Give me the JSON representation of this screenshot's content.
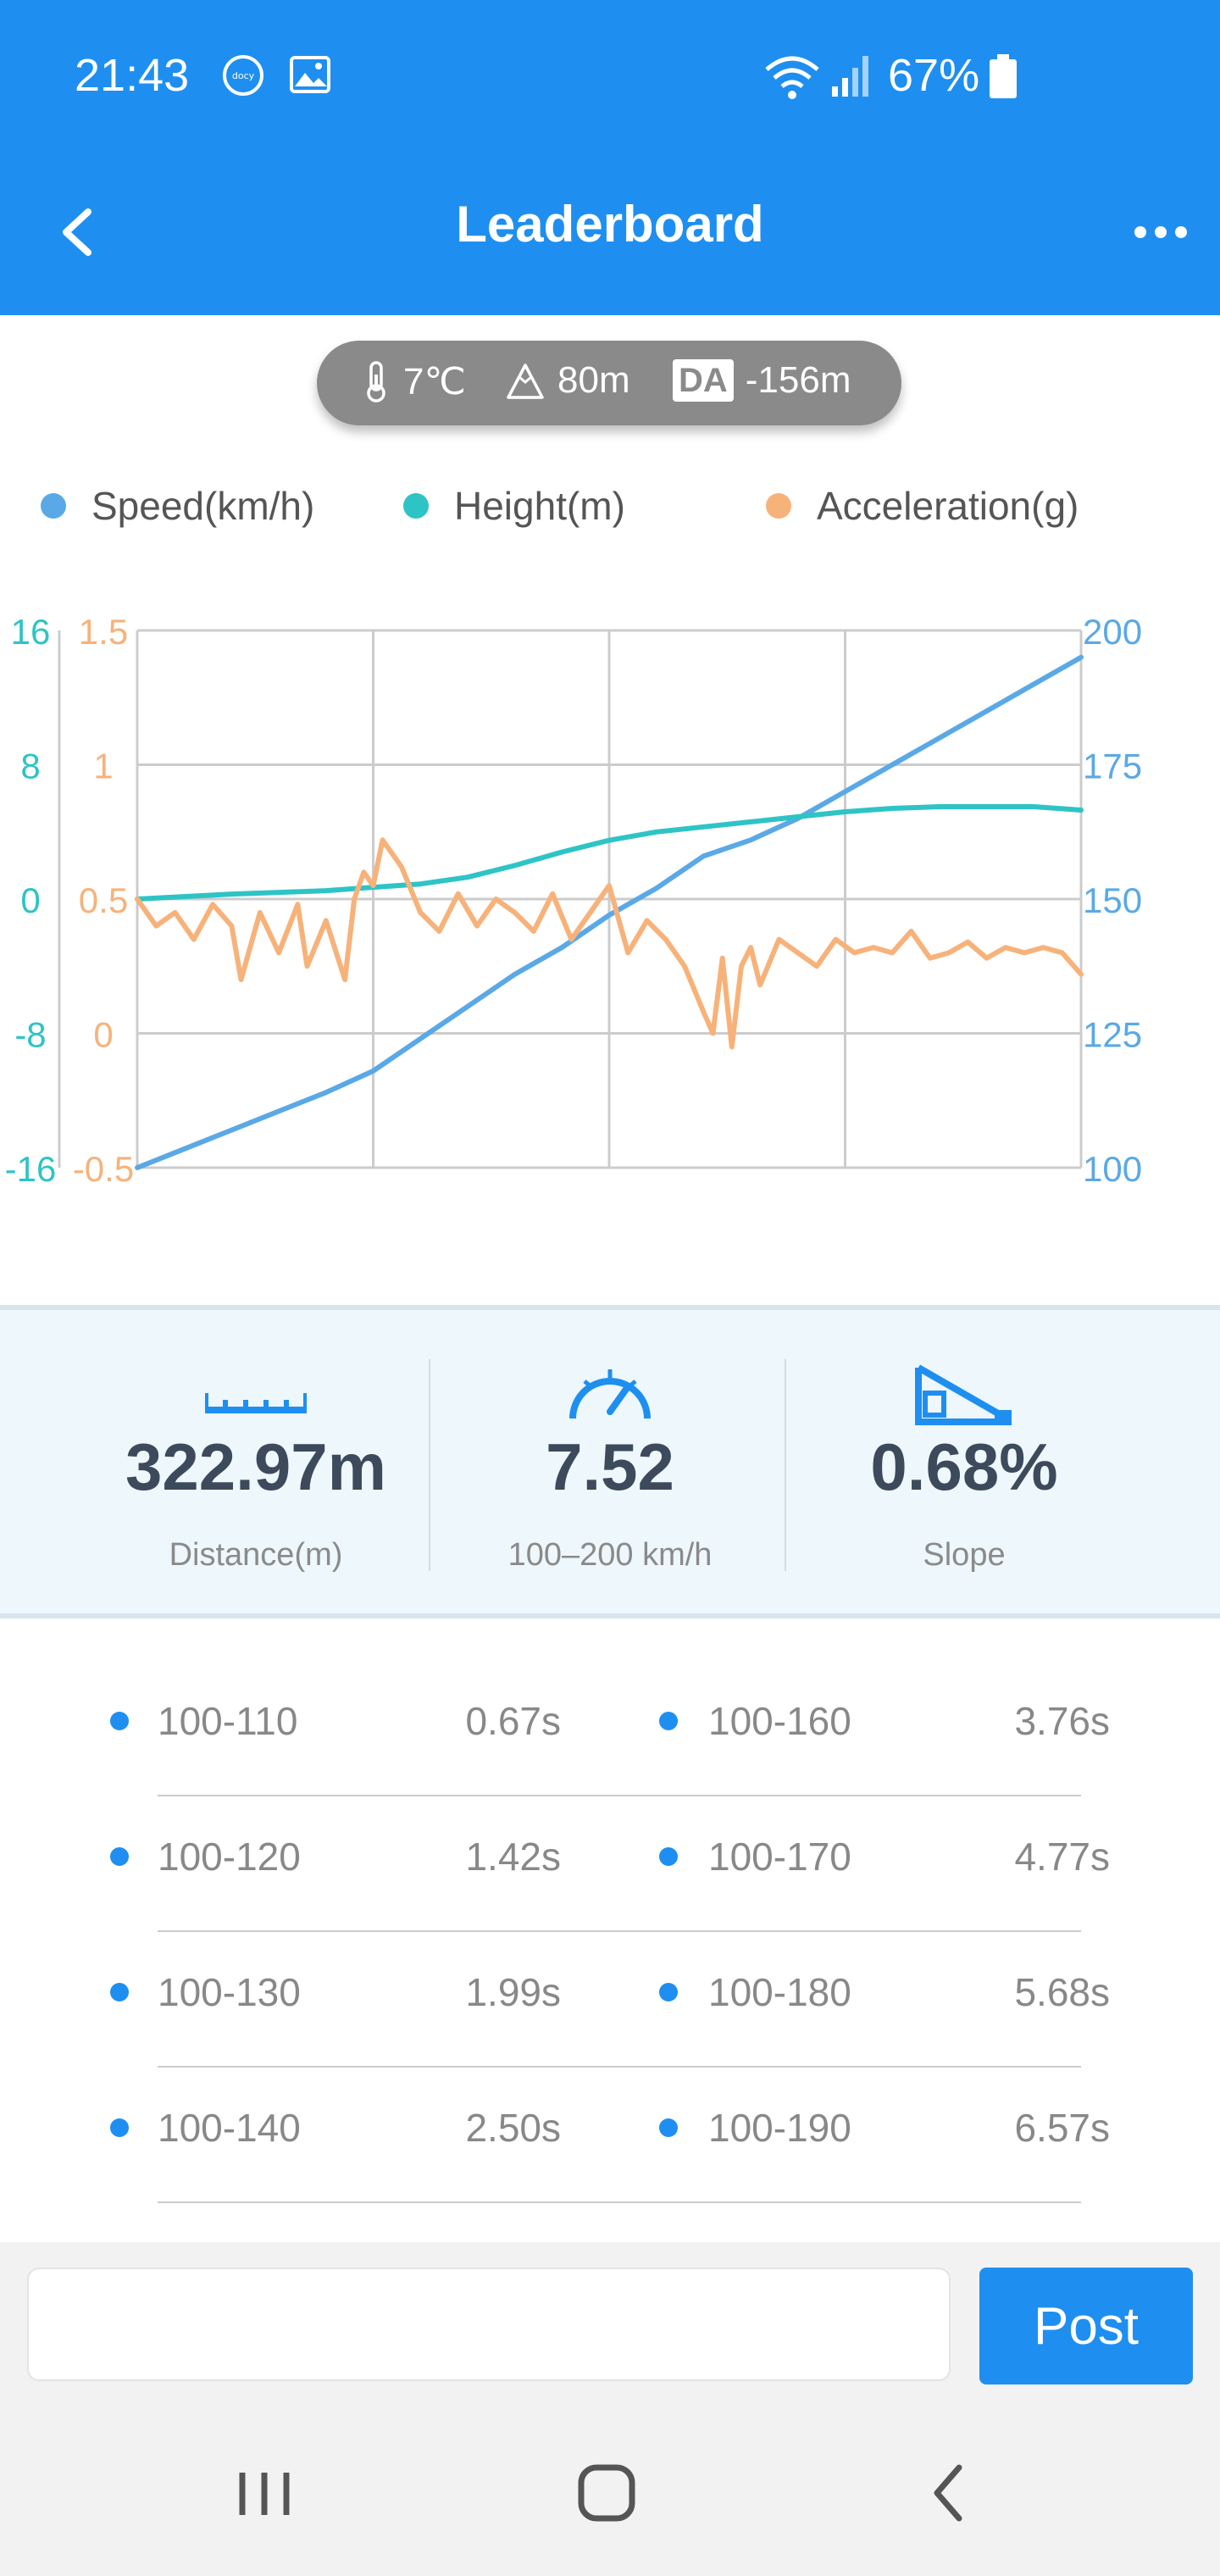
{
  "status_bar": {
    "time": "21:43",
    "notification_icons": [
      "dcloud-icon",
      "gallery-icon"
    ],
    "system_icons": [
      "wifi-icon",
      "signal-icon",
      "battery-icon"
    ],
    "battery_percent": "67%"
  },
  "app_bar": {
    "title": "Leaderboard",
    "back_icon": "chevron-left-icon",
    "menu_icon": "more-horizontal-icon"
  },
  "conditions": {
    "temperature": "7℃",
    "altitude": "80m",
    "da_badge": "DA",
    "density_altitude": "-156m"
  },
  "legend": [
    {
      "label": "Speed(km/h)",
      "color": "#5aa9e6"
    },
    {
      "label": "Height(m)",
      "color": "#2ec4c6"
    },
    {
      "label": "Acceleration(g)",
      "color": "#f7b27a"
    }
  ],
  "chart_data": {
    "type": "line",
    "grid": true,
    "x_divisions": 4,
    "axes": {
      "height_axis": {
        "ticks": [
          "16",
          "8",
          "0",
          "-8",
          "-16"
        ],
        "range": [
          -16,
          16
        ],
        "color": "#2ec4c6"
      },
      "accel_axis": {
        "ticks": [
          "1.5",
          "1",
          "0.5",
          "0",
          "-0.5"
        ],
        "range": [
          -0.5,
          1.5
        ],
        "color": "#f7b27a"
      },
      "speed_axis": {
        "ticks": [
          "200",
          "175",
          "150",
          "125",
          "100"
        ],
        "range": [
          100,
          200
        ],
        "color": "#5aa9e6"
      }
    },
    "series": [
      {
        "name": "Speed(km/h)",
        "axis": "speed_axis",
        "color": "#5aa9e6",
        "x": [
          0,
          0.05,
          0.1,
          0.15,
          0.2,
          0.25,
          0.3,
          0.35,
          0.4,
          0.45,
          0.5,
          0.55,
          0.6,
          0.65,
          0.7,
          0.75,
          0.8,
          0.85,
          0.9,
          0.95,
          1.0
        ],
        "values": [
          100,
          103.5,
          107,
          110.5,
          114,
          118,
          124,
          130,
          136,
          141,
          147,
          152,
          158,
          161,
          165,
          170,
          175,
          180,
          185,
          190,
          195
        ]
      },
      {
        "name": "Height(m)",
        "axis": "height_axis",
        "color": "#2ec4c6",
        "x": [
          0,
          0.1,
          0.2,
          0.25,
          0.3,
          0.35,
          0.4,
          0.45,
          0.5,
          0.55,
          0.6,
          0.65,
          0.7,
          0.75,
          0.8,
          0.85,
          0.9,
          0.95,
          1.0
        ],
        "values": [
          0,
          0.3,
          0.5,
          0.7,
          0.9,
          1.3,
          2.0,
          2.8,
          3.5,
          4.0,
          4.3,
          4.6,
          4.9,
          5.2,
          5.4,
          5.5,
          5.5,
          5.5,
          5.3
        ]
      },
      {
        "name": "Acceleration(g)",
        "axis": "accel_axis",
        "color": "#f7b27a",
        "x": [
          0,
          0.02,
          0.04,
          0.06,
          0.08,
          0.1,
          0.11,
          0.13,
          0.15,
          0.17,
          0.18,
          0.2,
          0.22,
          0.23,
          0.24,
          0.25,
          0.26,
          0.28,
          0.3,
          0.32,
          0.34,
          0.36,
          0.38,
          0.4,
          0.42,
          0.44,
          0.46,
          0.48,
          0.5,
          0.52,
          0.54,
          0.56,
          0.58,
          0.6,
          0.61,
          0.62,
          0.63,
          0.64,
          0.65,
          0.66,
          0.68,
          0.7,
          0.72,
          0.74,
          0.76,
          0.78,
          0.8,
          0.82,
          0.84,
          0.86,
          0.88,
          0.9,
          0.92,
          0.94,
          0.96,
          0.98,
          1.0
        ],
        "values": [
          0.5,
          0.4,
          0.45,
          0.35,
          0.48,
          0.4,
          0.2,
          0.45,
          0.3,
          0.48,
          0.25,
          0.42,
          0.2,
          0.5,
          0.6,
          0.55,
          0.72,
          0.62,
          0.45,
          0.38,
          0.52,
          0.4,
          0.5,
          0.45,
          0.38,
          0.52,
          0.35,
          0.45,
          0.55,
          0.3,
          0.42,
          0.35,
          0.25,
          0.08,
          0.0,
          0.28,
          -0.05,
          0.25,
          0.32,
          0.18,
          0.35,
          0.3,
          0.25,
          0.35,
          0.3,
          0.32,
          0.3,
          0.38,
          0.28,
          0.3,
          0.34,
          0.28,
          0.32,
          0.3,
          0.32,
          0.3,
          0.22
        ]
      }
    ]
  },
  "stats": [
    {
      "icon": "ruler-icon",
      "value": "322.97m",
      "label": "Distance(m)"
    },
    {
      "icon": "speedometer-icon",
      "value": "7.52",
      "label": "100–200 km/h"
    },
    {
      "icon": "slope-icon",
      "value": "0.68%",
      "label": "Slope"
    }
  ],
  "splits": [
    [
      {
        "range": "100-110",
        "time": "0.67s"
      },
      {
        "range": "100-160",
        "time": "3.76s"
      }
    ],
    [
      {
        "range": "100-120",
        "time": "1.42s"
      },
      {
        "range": "100-170",
        "time": "4.77s"
      }
    ],
    [
      {
        "range": "100-130",
        "time": "1.99s"
      },
      {
        "range": "100-180",
        "time": "5.68s"
      }
    ],
    [
      {
        "range": "100-140",
        "time": "2.50s"
      },
      {
        "range": "100-190",
        "time": "6.57s"
      }
    ]
  ],
  "comment": {
    "value": "",
    "placeholder": "",
    "post_label": "Post"
  },
  "nav_bar": {
    "icons": [
      "recent-apps-icon",
      "home-icon",
      "back-icon"
    ]
  },
  "colors": {
    "primary": "#1e8ff0",
    "stats_bg": "#eef7fb",
    "text_dark": "#3c4a5c",
    "text_muted": "#888888"
  }
}
